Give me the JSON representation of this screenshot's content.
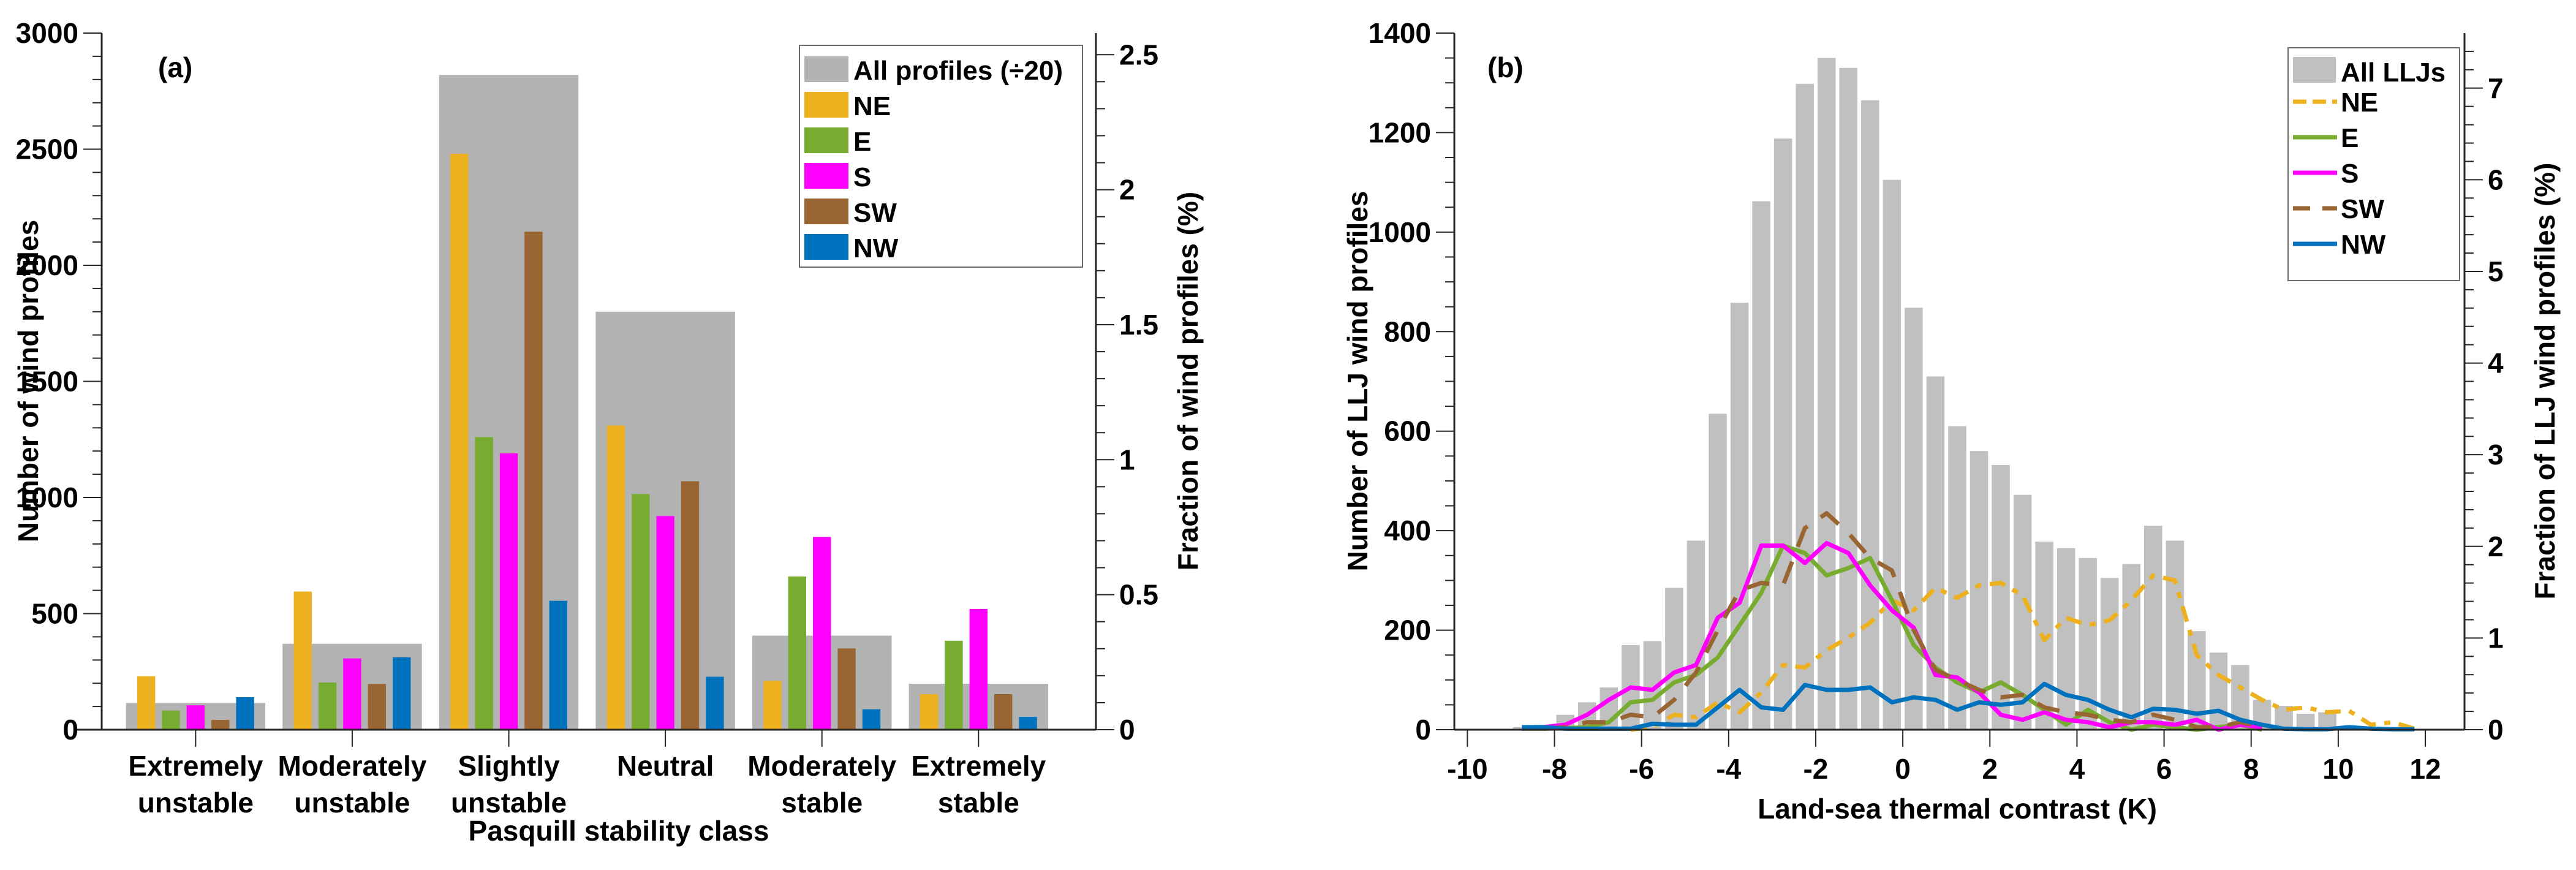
{
  "chart_data": [
    {
      "panel": "(a)",
      "type": "bar",
      "xlabel": "Pasquill stability class",
      "ylabel": "Number of wind profiles",
      "ylabel_right": "Fraction of wind profiles (%)",
      "ylim": [
        0,
        3000
      ],
      "yticks": [
        0,
        500,
        1000,
        1500,
        2000,
        2500,
        3000
      ],
      "ylim_right": [
        0,
        2.58
      ],
      "yticks_right": [
        "0",
        "0.5",
        "1",
        "1.5",
        "2",
        "2.5"
      ],
      "categories": [
        [
          "Extremely",
          "unstable"
        ],
        [
          "Moderately",
          "unstable"
        ],
        [
          "Slightly",
          "unstable"
        ],
        [
          "Neutral",
          ""
        ],
        [
          "Moderately",
          "stable"
        ],
        [
          "Extremely",
          "stable"
        ]
      ],
      "background_series": {
        "name": "All profiles (÷20)",
        "color": "#b3b3b3",
        "values": [
          115,
          370,
          2820,
          1800,
          405,
          198
        ]
      },
      "series": [
        {
          "name": "NE",
          "color": "#edb120",
          "values": [
            230,
            595,
            2480,
            1310,
            210,
            153
          ]
        },
        {
          "name": "E",
          "color": "#77ac30",
          "values": [
            83,
            203,
            1260,
            1015,
            660,
            383
          ]
        },
        {
          "name": "S",
          "color": "#ff00ff",
          "values": [
            105,
            307,
            1190,
            920,
            830,
            520
          ]
        },
        {
          "name": "SW",
          "color": "#996633",
          "values": [
            42,
            197,
            2145,
            1070,
            350,
            153
          ]
        },
        {
          "name": "NW",
          "color": "#0072bd",
          "values": [
            140,
            312,
            555,
            228,
            88,
            55
          ]
        }
      ],
      "legend": {
        "position": "top-right",
        "entries": [
          "All profiles (÷20)",
          "NE",
          "E",
          "S",
          "SW",
          "NW"
        ]
      },
      "grid": false
    },
    {
      "panel": "(b)",
      "type": "bar",
      "xlabel": "Land-sea thermal contrast (K)",
      "ylabel": "Number of LLJ wind profiles",
      "ylabel_right": "Fraction of LLJ wind profiles (%)",
      "xlim": [
        -10.3,
        12.9
      ],
      "xticks": [
        -10,
        -8,
        -6,
        -4,
        -2,
        0,
        2,
        4,
        6,
        8,
        10,
        12
      ],
      "ylim": [
        0,
        1400
      ],
      "yticks": [
        0,
        200,
        400,
        600,
        800,
        1000,
        1200,
        1400
      ],
      "ylim_right": [
        0,
        7.6
      ],
      "yticks_right": [
        "0",
        "1",
        "2",
        "3",
        "4",
        "5",
        "6",
        "7"
      ],
      "histogram": {
        "name": "All LLJs",
        "color": "#c0c0c0",
        "bin_width": 0.5,
        "x": [
          -8.75,
          -8.25,
          -7.75,
          -7.25,
          -6.75,
          -6.25,
          -5.75,
          -5.25,
          -4.75,
          -4.25,
          -3.75,
          -3.25,
          -2.75,
          -2.25,
          -1.75,
          -1.25,
          -0.75,
          -0.25,
          0.25,
          0.75,
          1.25,
          1.75,
          2.25,
          2.75,
          3.25,
          3.75,
          4.25,
          4.75,
          5.25,
          5.75,
          6.25,
          6.75,
          7.25,
          7.75,
          8.25,
          8.75,
          9.25,
          9.75,
          10.25,
          10.75
        ],
        "values": [
          5,
          10,
          30,
          55,
          85,
          170,
          178,
          285,
          380,
          635,
          858,
          1062,
          1188,
          1298,
          1350,
          1330,
          1265,
          1105,
          848,
          710,
          610,
          560,
          532,
          472,
          378,
          365,
          345,
          305,
          333,
          410,
          380,
          198,
          155,
          130,
          60,
          48,
          32,
          35,
          5,
          3
        ]
      },
      "series": [
        {
          "name": "NE",
          "color": "#edb120",
          "style": "dash-dot",
          "x": [
            -6.25,
            -5.75,
            -5.25,
            -4.75,
            -4.25,
            -3.75,
            -3.25,
            -2.75,
            -2.25,
            -1.75,
            -1.25,
            -0.75,
            -0.25,
            0.25,
            0.75,
            1.25,
            1.75,
            2.25,
            2.75,
            3.25,
            3.75,
            4.25,
            4.75,
            5.25,
            5.75,
            6.25,
            6.75,
            7.25,
            7.75,
            8.25,
            8.75,
            9.25,
            9.75,
            10.25,
            10.75,
            11.25,
            11.75
          ],
          "values": [
            0,
            5,
            30,
            25,
            55,
            35,
            75,
            130,
            125,
            160,
            185,
            215,
            260,
            240,
            285,
            265,
            290,
            295,
            270,
            180,
            225,
            210,
            220,
            260,
            310,
            300,
            150,
            110,
            85,
            60,
            40,
            45,
            35,
            38,
            10,
            15,
            2
          ]
        },
        {
          "name": "E",
          "color": "#77ac30",
          "style": "solid",
          "x": [
            -8.75,
            -8.25,
            -7.75,
            -7.25,
            -6.75,
            -6.25,
            -5.75,
            -5.25,
            -4.75,
            -4.25,
            -3.75,
            -3.25,
            -2.75,
            -2.25,
            -1.75,
            -1.25,
            -0.75,
            -0.25,
            0.25,
            0.75,
            1.25,
            1.75,
            2.25,
            2.75,
            3.25,
            3.75,
            4.25,
            4.75,
            5.25,
            5.75,
            6.25,
            6.75,
            7.25,
            7.75,
            8.25
          ],
          "values": [
            2,
            2,
            3,
            5,
            15,
            55,
            60,
            95,
            110,
            145,
            210,
            275,
            370,
            355,
            310,
            325,
            345,
            260,
            170,
            125,
            95,
            75,
            95,
            70,
            40,
            10,
            40,
            15,
            0,
            10,
            5,
            0,
            5,
            10,
            0
          ]
        },
        {
          "name": "S",
          "color": "#ff00ff",
          "style": "solid",
          "x": [
            -8.75,
            -8.25,
            -7.75,
            -7.25,
            -6.75,
            -6.25,
            -5.75,
            -5.25,
            -4.75,
            -4.25,
            -3.75,
            -3.25,
            -2.75,
            -2.25,
            -1.75,
            -1.25,
            -0.75,
            -0.25,
            0.25,
            0.75,
            1.25,
            1.75,
            2.25,
            2.75,
            3.25,
            3.75,
            4.25,
            4.75,
            5.25,
            5.75,
            6.25,
            6.75,
            7.25,
            7.75,
            8.25
          ],
          "values": [
            2,
            5,
            10,
            30,
            60,
            85,
            80,
            115,
            130,
            225,
            255,
            370,
            370,
            335,
            375,
            355,
            290,
            240,
            205,
            110,
            105,
            75,
            30,
            20,
            35,
            20,
            15,
            5,
            15,
            15,
            10,
            20,
            0,
            10,
            5
          ]
        },
        {
          "name": "SW",
          "color": "#996633",
          "style": "dash",
          "x": [
            -8.25,
            -7.75,
            -7.25,
            -6.75,
            -6.25,
            -5.75,
            -5.25,
            -4.75,
            -4.25,
            -3.75,
            -3.25,
            -2.75,
            -2.25,
            -1.75,
            -1.25,
            -0.75,
            -0.25,
            0.25,
            0.75,
            1.25,
            1.75,
            2.25,
            2.75,
            3.25,
            3.75,
            4.25,
            4.75,
            5.25,
            5.75,
            6.25,
            6.75,
            7.25,
            7.75,
            8.25
          ],
          "values": [
            2,
            5,
            15,
            15,
            30,
            25,
            60,
            115,
            200,
            280,
            295,
            290,
            405,
            435,
            395,
            345,
            320,
            200,
            120,
            100,
            80,
            65,
            70,
            45,
            35,
            30,
            20,
            15,
            30,
            20,
            5,
            5,
            15,
            5
          ]
        },
        {
          "name": "NW",
          "color": "#0072bd",
          "style": "solid",
          "x": [
            -8.75,
            -8.25,
            -7.75,
            -7.25,
            -6.75,
            -6.25,
            -5.75,
            -5.25,
            -4.75,
            -4.25,
            -3.75,
            -3.25,
            -2.75,
            -2.25,
            -1.75,
            -1.25,
            -0.75,
            -0.25,
            0.25,
            0.75,
            1.25,
            1.75,
            2.25,
            2.75,
            3.25,
            3.75,
            4.25,
            4.75,
            5.25,
            5.75,
            6.25,
            6.75,
            7.25,
            7.75,
            8.25,
            8.75,
            9.25,
            9.75,
            10.25,
            10.75,
            11.25,
            11.75
          ],
          "values": [
            5,
            5,
            2,
            2,
            2,
            2,
            12,
            10,
            10,
            45,
            80,
            45,
            40,
            90,
            80,
            80,
            85,
            55,
            65,
            60,
            40,
            55,
            50,
            55,
            92,
            70,
            60,
            40,
            25,
            42,
            40,
            32,
            38,
            20,
            10,
            2,
            1,
            1,
            5,
            2,
            1,
            1
          ]
        }
      ],
      "legend": {
        "position": "top-right",
        "entries": [
          "All LLJs",
          "NE",
          "E",
          "S",
          "SW",
          "NW"
        ]
      },
      "grid": false
    }
  ],
  "panels": {
    "a": {
      "label": "(a)",
      "xlabel": "Pasquill stability class",
      "ylabel": "Number of wind profiles",
      "ylabel_right": "Fraction of wind profiles (%)",
      "legend": [
        "All profiles (÷20)",
        "NE",
        "E",
        "S",
        "SW",
        "NW"
      ]
    },
    "b": {
      "label": "(b)",
      "xlabel": "Land-sea thermal contrast (K)",
      "ylabel": "Number of LLJ wind profiles",
      "ylabel_right": "Fraction of LLJ wind profiles (%)",
      "legend": [
        "All LLJs",
        "NE",
        "E",
        "S",
        "SW",
        "NW"
      ]
    }
  }
}
